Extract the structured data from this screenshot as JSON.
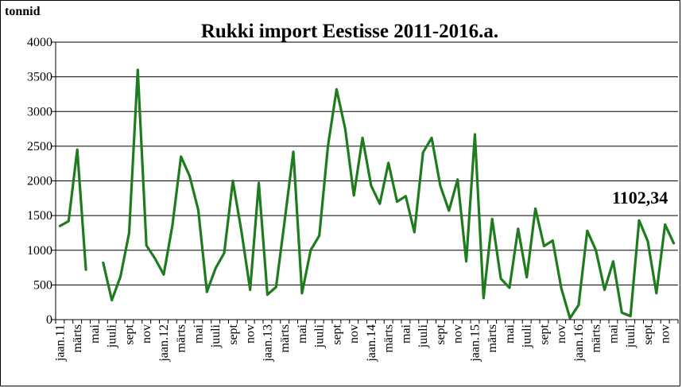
{
  "chart_data": {
    "type": "line",
    "title": "Rukki import Eestisse 2011-2016.a.",
    "ylabel": "tonnid",
    "xlabel": "",
    "ylim": [
      0,
      4000
    ],
    "yticks": [
      0,
      500,
      1000,
      1500,
      2000,
      2500,
      3000,
      3500,
      4000
    ],
    "grid": true,
    "legend": "none",
    "line_color": "#1e7b1e",
    "x_tick_labels": [
      "jaan.11",
      "",
      "märts",
      "",
      "mai",
      "",
      "juuli",
      "",
      "sept",
      "",
      "nov",
      "",
      "jaan.12",
      "",
      "märts",
      "",
      "mai",
      "",
      "juuli",
      "",
      "sept",
      "",
      "nov",
      "",
      "jaan.13",
      "",
      "märts",
      "",
      "mai",
      "",
      "juuli",
      "",
      "sept",
      "",
      "nov",
      "",
      "jaan.14",
      "",
      "märts",
      "",
      "mai",
      "",
      "juuli",
      "",
      "sept",
      "",
      "nov",
      "",
      "jaan.15",
      "",
      "märts",
      "",
      "mai",
      "",
      "juuli",
      "",
      "sept",
      "",
      "nov",
      "",
      "jaan.16",
      "",
      "märts",
      "",
      "mai",
      "",
      "juuli",
      "",
      "sept",
      "",
      "nov",
      ""
    ],
    "series": [
      {
        "values": [
          1350,
          1420,
          2450,
          720,
          null,
          820,
          280,
          620,
          1250,
          3600,
          1070,
          880,
          650,
          1350,
          2350,
          2070,
          1580,
          400,
          740,
          960,
          2000,
          1270,
          430,
          1970,
          360,
          470,
          1430,
          2420,
          380,
          1000,
          1210,
          2500,
          3320,
          2750,
          1790,
          2620,
          1930,
          1670,
          2260,
          1700,
          1780,
          1260,
          2410,
          2620,
          1930,
          1570,
          2020,
          840,
          2670,
          310,
          1450,
          590,
          460,
          1310,
          610,
          1600,
          1060,
          1140,
          450,
          20,
          210,
          1280,
          1000,
          430,
          840,
          100,
          50,
          1430,
          1130,
          380,
          1370,
          1102.34
        ]
      }
    ],
    "annotations": [
      {
        "text": "1102,34"
      }
    ]
  }
}
